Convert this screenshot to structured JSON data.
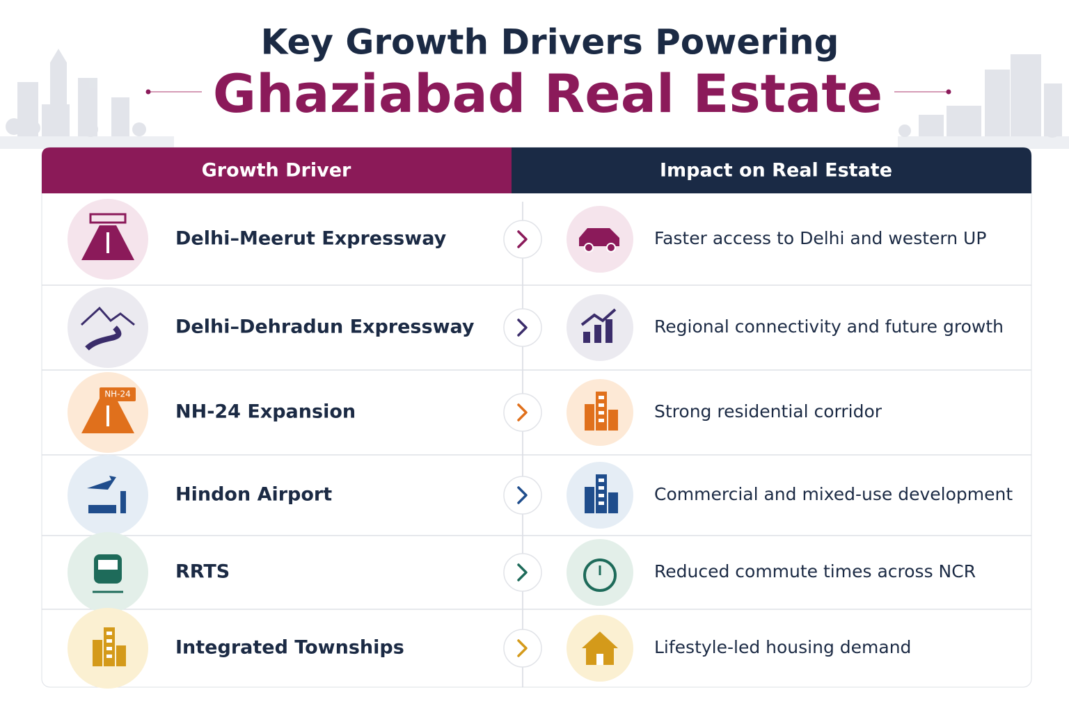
{
  "header": {
    "title_line1": "Key Growth Drivers Powering",
    "title_line2": "Ghaziabad Real Estate"
  },
  "table": {
    "headers": [
      "Growth Driver",
      "Impact on Real Estate"
    ],
    "rows": [
      {
        "driver": "Delhi–Meerut Expressway",
        "impact": "Faster access to Delhi and western UP"
      },
      {
        "driver": "Delhi–Dehradun Expressway",
        "impact": "Regional connectivity and future growth"
      },
      {
        "driver": "NH-24 Expansion",
        "impact": "Strong residential corridor",
        "badge": "NH-24"
      },
      {
        "driver": "Hindon Airport",
        "impact": "Commercial and mixed-use development"
      },
      {
        "driver": "RRTS",
        "impact": "Reduced commute times across NCR"
      },
      {
        "driver": "Integrated Townships",
        "impact": "Lifestyle-led housing demand"
      }
    ]
  }
}
